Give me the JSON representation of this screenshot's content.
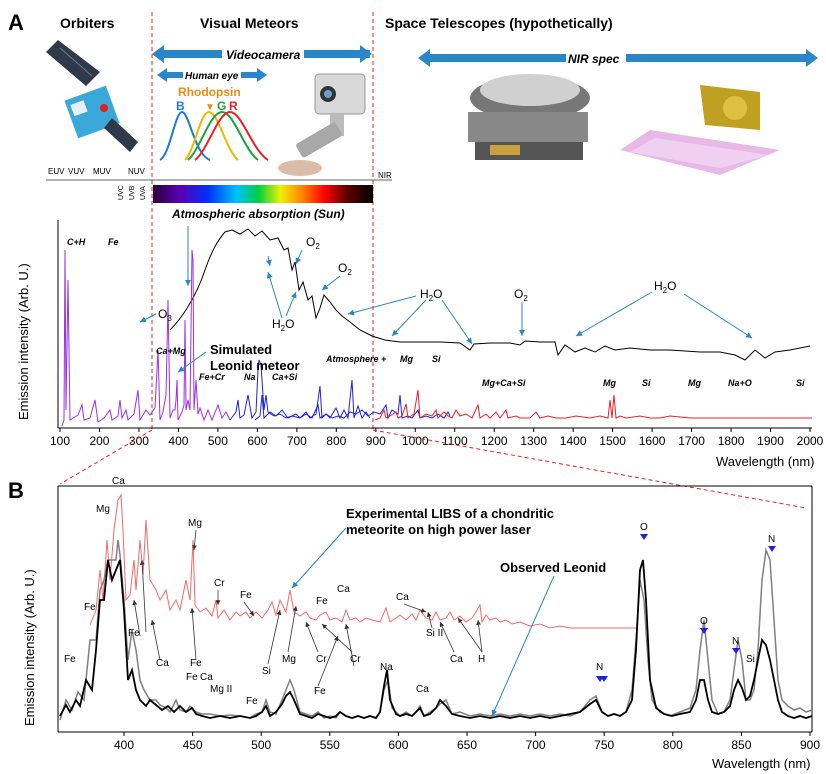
{
  "panel_a": {
    "letter": "A",
    "headers": {
      "orbiters": "Orbiters",
      "visual": "Visual Meteors",
      "space": "Space Telescopes (hypothetically)"
    },
    "arrows": {
      "videocamera": "Videocamera",
      "human_eye": "Human eye",
      "nir_spec": "NIR spec"
    },
    "rhodopsin": "Rhodopsin",
    "cones": {
      "b": "B",
      "g": "G",
      "r": "R"
    },
    "bands": {
      "euv": "EUV",
      "vuv": "VUV",
      "muv": "MUV",
      "nuv": "NUV",
      "nir": "NIR",
      "uvc": "UVC",
      "uvb": "UVB",
      "uva": "UVA"
    },
    "atm_title": "Atmospheric absorption (Sun)",
    "molecules": {
      "o3": "O",
      "o3_sub": "3",
      "o2a": "O",
      "o2a_sub": "2",
      "o2b": "O",
      "o2b_sub": "2",
      "o2c": "O",
      "o2c_sub": "2",
      "h2o_1": "H",
      "h2o_1_sub": "2",
      "h2o_1_end": "O",
      "h2o_2": "H",
      "h2o_2_sub": "2",
      "h2o_2_end": "O",
      "h2o_3": "H",
      "h2o_3_sub": "2",
      "h2o_3_end": "O"
    },
    "elements": {
      "ch": "C+H",
      "fe1": "Fe",
      "camg": "Ca+Mg",
      "fecr": "Fe+Cr",
      "na": "Na",
      "casi": "Ca+Si",
      "atm": "Atmosphere +",
      "mg1": "Mg",
      "si1": "Si",
      "mgcasi": "Mg+Ca+Si",
      "mg2": "Mg",
      "si2": "Si",
      "mg3": "Mg",
      "nao": "Na+O",
      "si3": "Si"
    },
    "simulated": [
      "Simulated",
      "Leonid meteor"
    ],
    "ylabel": "Emission intensity (Arb. U.)",
    "xlabel": "Wavelength (nm)",
    "xticks": [
      "100",
      "200",
      "300",
      "400",
      "500",
      "600",
      "700",
      "800",
      "900",
      "1000",
      "1100",
      "1200",
      "1300",
      "1400",
      "1500",
      "1600",
      "1700",
      "1800",
      "1900",
      "2000"
    ]
  },
  "panel_b": {
    "letter": "B",
    "ylabel": "Emission intensity (Arb. U.)",
    "xlabel": "Wavelength (nm)",
    "xticks": [
      "400",
      "450",
      "500",
      "550",
      "600",
      "650",
      "700",
      "750",
      "800",
      "850",
      "900"
    ],
    "libs_label": [
      "Experimental LIBS of a chondritic",
      "meteorite on high power laser"
    ],
    "observed_label": "Observed Leonid",
    "red_labels": {
      "ca": "Ca",
      "mg1": "Mg",
      "mg2": "Mg",
      "cr": "Cr",
      "fe1": "Fe",
      "fe2": "Fe",
      "fe3": "Fe",
      "ca2": "Ca",
      "ca3": "Ca"
    },
    "lower_labels": {
      "fe1": "Fe",
      "fe2": "Fe",
      "fe3": "Fe",
      "ca1": "Ca",
      "fe4": "Fe",
      "ca2": "Ca",
      "mg2": "Mg II",
      "fe5": "Fe",
      "si": "Si",
      "mg": "Mg",
      "cr1": "Cr",
      "fe6": "Fe",
      "cr2": "Cr",
      "na": "Na",
      "ca3": "Ca",
      "si2": "Si II",
      "ca4": "Ca",
      "h": "H"
    },
    "blue_labels": {
      "n1": "N",
      "o1": "O",
      "o2": "O",
      "n2": "N",
      "si": "Si",
      "n3": "N"
    }
  },
  "colors": {
    "purple": "#9b30e8",
    "blue": "#1f22d6",
    "red": "#e8202a",
    "black": "#000000",
    "gray": "#808080",
    "pink": "#f26a6a",
    "arrow_blue": "#2a86c8"
  }
}
